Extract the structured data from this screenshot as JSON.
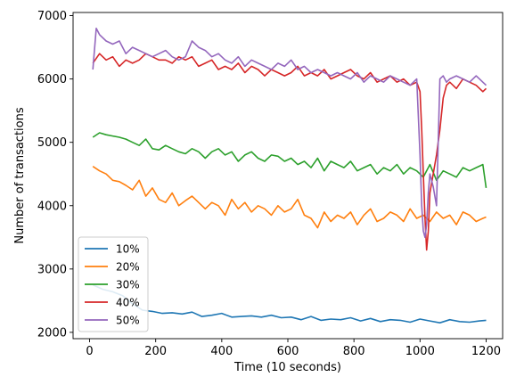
{
  "chart_data": {
    "type": "line",
    "title": "",
    "xlabel": "Time (10 seconds)",
    "ylabel": "Number of transactions",
    "xlim": [
      -50,
      1250
    ],
    "ylim": [
      1900,
      7050
    ],
    "xticks": [
      0,
      200,
      400,
      600,
      800,
      1000,
      1200
    ],
    "yticks": [
      2000,
      3000,
      4000,
      5000,
      6000,
      7000
    ],
    "grid": false,
    "legend_position": "lower-left",
    "series": [
      {
        "name": "10%",
        "color": "#1f77b4",
        "x": [
          10,
          40,
          70,
          100,
          130,
          160,
          190,
          220,
          250,
          280,
          310,
          340,
          370,
          400,
          430,
          460,
          490,
          520,
          550,
          580,
          610,
          640,
          670,
          700,
          730,
          760,
          790,
          820,
          850,
          880,
          910,
          940,
          970,
          1000,
          1030,
          1060,
          1090,
          1120,
          1150,
          1180,
          1200
        ],
        "values": [
          2750,
          2680,
          2640,
          2580,
          2450,
          2350,
          2330,
          2300,
          2310,
          2290,
          2320,
          2250,
          2270,
          2300,
          2240,
          2250,
          2260,
          2240,
          2270,
          2230,
          2240,
          2200,
          2250,
          2190,
          2210,
          2200,
          2230,
          2180,
          2220,
          2170,
          2200,
          2190,
          2160,
          2210,
          2180,
          2150,
          2200,
          2170,
          2160,
          2180,
          2190
        ]
      },
      {
        "name": "20%",
        "color": "#ff7f0e",
        "x": [
          10,
          30,
          50,
          70,
          90,
          110,
          130,
          150,
          170,
          190,
          210,
          230,
          250,
          270,
          290,
          310,
          330,
          350,
          370,
          390,
          410,
          430,
          450,
          470,
          490,
          510,
          530,
          550,
          570,
          590,
          610,
          630,
          650,
          670,
          690,
          710,
          730,
          750,
          770,
          790,
          810,
          830,
          850,
          870,
          890,
          910,
          930,
          950,
          970,
          990,
          1010,
          1030,
          1050,
          1070,
          1090,
          1110,
          1130,
          1150,
          1170,
          1190,
          1200
        ],
        "values": [
          4620,
          4550,
          4500,
          4400,
          4380,
          4320,
          4250,
          4400,
          4150,
          4280,
          4100,
          4050,
          4200,
          4000,
          4080,
          4150,
          4050,
          3950,
          4050,
          4000,
          3850,
          4100,
          3950,
          4050,
          3900,
          4000,
          3950,
          3850,
          4000,
          3900,
          3950,
          4100,
          3850,
          3800,
          3650,
          3900,
          3750,
          3850,
          3800,
          3900,
          3700,
          3850,
          3950,
          3750,
          3800,
          3900,
          3850,
          3750,
          3950,
          3800,
          3850,
          3750,
          3900,
          3800,
          3850,
          3700,
          3900,
          3850,
          3750,
          3800,
          3820
        ]
      },
      {
        "name": "30%",
        "color": "#2ca02c",
        "x": [
          10,
          30,
          50,
          70,
          90,
          110,
          130,
          150,
          170,
          190,
          210,
          230,
          250,
          270,
          290,
          310,
          330,
          350,
          370,
          390,
          410,
          430,
          450,
          470,
          490,
          510,
          530,
          550,
          570,
          590,
          610,
          630,
          650,
          670,
          690,
          710,
          730,
          750,
          770,
          790,
          810,
          830,
          850,
          870,
          890,
          910,
          930,
          950,
          970,
          990,
          1010,
          1030,
          1050,
          1070,
          1090,
          1110,
          1130,
          1150,
          1170,
          1190,
          1200
        ],
        "values": [
          5080,
          5150,
          5120,
          5100,
          5080,
          5050,
          5000,
          4950,
          5050,
          4900,
          4880,
          4950,
          4900,
          4850,
          4820,
          4900,
          4850,
          4750,
          4850,
          4900,
          4800,
          4850,
          4700,
          4800,
          4850,
          4750,
          4700,
          4800,
          4780,
          4700,
          4750,
          4650,
          4700,
          4600,
          4750,
          4550,
          4700,
          4650,
          4600,
          4700,
          4550,
          4600,
          4650,
          4500,
          4600,
          4550,
          4650,
          4500,
          4600,
          4550,
          4450,
          4650,
          4400,
          4550,
          4500,
          4450,
          4600,
          4550,
          4600,
          4650,
          4280
        ]
      },
      {
        "name": "40%",
        "color": "#d62728",
        "x": [
          10,
          30,
          50,
          70,
          90,
          110,
          130,
          150,
          170,
          190,
          210,
          230,
          250,
          270,
          290,
          310,
          330,
          350,
          370,
          390,
          410,
          430,
          450,
          470,
          490,
          510,
          530,
          550,
          570,
          590,
          610,
          630,
          650,
          670,
          690,
          710,
          730,
          750,
          770,
          790,
          810,
          830,
          850,
          870,
          890,
          910,
          930,
          950,
          970,
          990,
          1000,
          1005,
          1010,
          1015,
          1020,
          1025,
          1030,
          1040,
          1050,
          1060,
          1070,
          1080,
          1090,
          1110,
          1130,
          1150,
          1170,
          1190,
          1200
        ],
        "values": [
          6250,
          6400,
          6300,
          6350,
          6200,
          6300,
          6250,
          6300,
          6400,
          6350,
          6300,
          6300,
          6250,
          6350,
          6300,
          6350,
          6200,
          6250,
          6300,
          6150,
          6200,
          6150,
          6250,
          6100,
          6200,
          6150,
          6050,
          6150,
          6100,
          6050,
          6100,
          6200,
          6050,
          6100,
          6050,
          6150,
          6000,
          6050,
          6100,
          6150,
          6050,
          6000,
          6100,
          5950,
          6000,
          6050,
          5950,
          6000,
          5900,
          5950,
          5800,
          5200,
          4500,
          3800,
          3300,
          3600,
          4200,
          4500,
          4800,
          5200,
          5700,
          5900,
          5950,
          5850,
          6000,
          5950,
          5900,
          5800,
          5850
        ]
      },
      {
        "name": "50%",
        "color": "#9467bd",
        "x": [
          10,
          20,
          30,
          50,
          70,
          90,
          110,
          130,
          150,
          170,
          190,
          210,
          230,
          250,
          270,
          290,
          310,
          330,
          350,
          370,
          390,
          410,
          430,
          450,
          470,
          490,
          510,
          530,
          550,
          570,
          590,
          610,
          630,
          650,
          670,
          690,
          710,
          730,
          750,
          770,
          790,
          810,
          830,
          850,
          870,
          890,
          910,
          930,
          950,
          970,
          990,
          1000,
          1005,
          1010,
          1015,
          1020,
          1025,
          1030,
          1040,
          1050,
          1060,
          1070,
          1080,
          1090,
          1110,
          1130,
          1150,
          1170,
          1190,
          1200
        ],
        "values": [
          6150,
          6800,
          6700,
          6600,
          6550,
          6600,
          6400,
          6500,
          6450,
          6400,
          6350,
          6400,
          6450,
          6350,
          6300,
          6350,
          6600,
          6500,
          6450,
          6350,
          6400,
          6300,
          6250,
          6350,
          6200,
          6300,
          6250,
          6200,
          6150,
          6250,
          6200,
          6300,
          6150,
          6200,
          6100,
          6150,
          6100,
          6050,
          6100,
          6050,
          6000,
          6100,
          5950,
          6050,
          6000,
          5950,
          6050,
          6000,
          5950,
          5900,
          6000,
          4800,
          4000,
          3600,
          3500,
          3700,
          4200,
          4500,
          4300,
          4000,
          6000,
          6050,
          5950,
          6000,
          6050,
          6000,
          5950,
          6050,
          5950,
          5900
        ]
      }
    ]
  }
}
